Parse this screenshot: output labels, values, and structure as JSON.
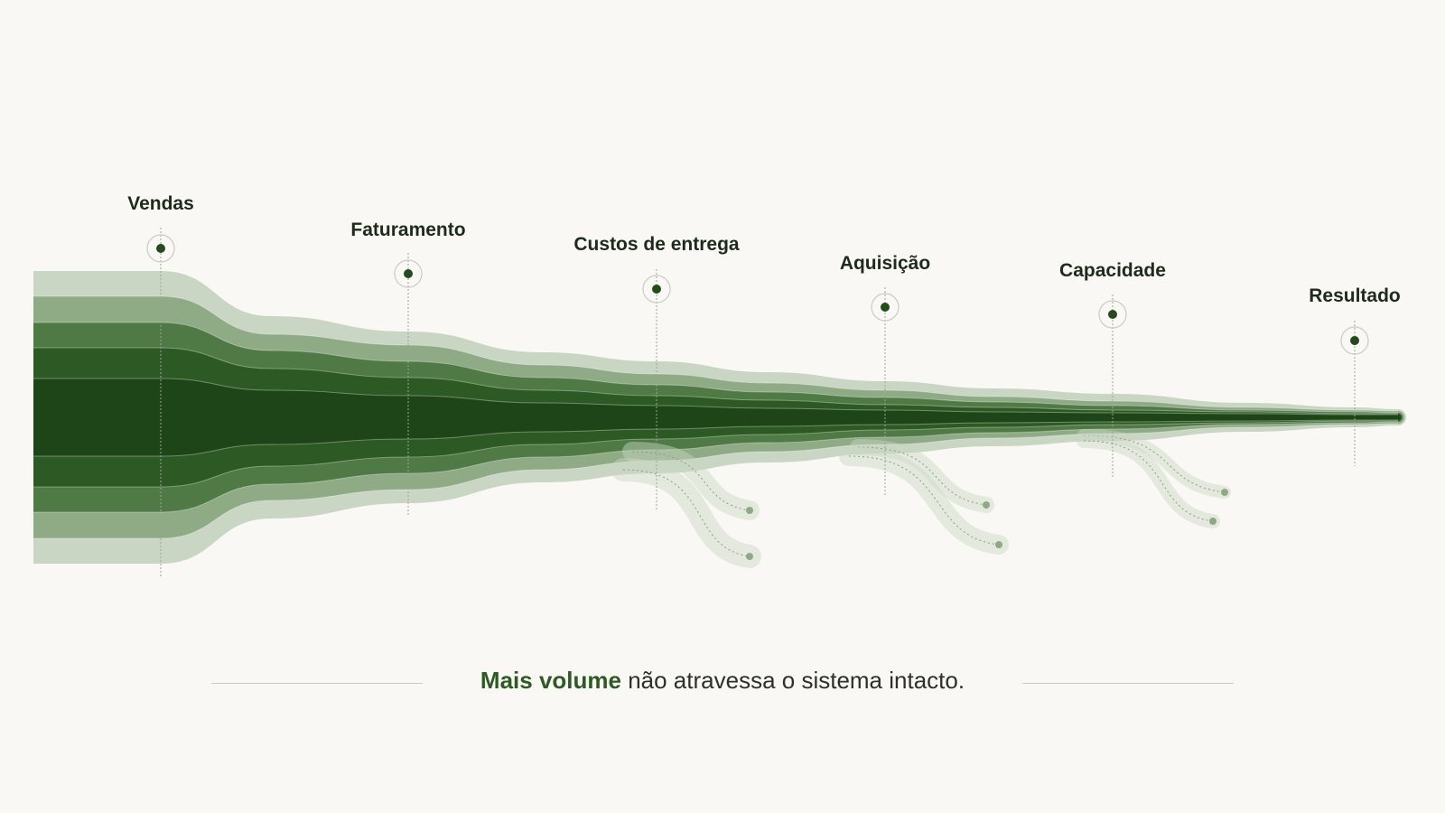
{
  "stages": [
    {
      "label": "Vendas"
    },
    {
      "label": "Faturamento"
    },
    {
      "label": "Custos de entrega"
    },
    {
      "label": "Aquisição"
    },
    {
      "label": "Capacidade"
    },
    {
      "label": "Resultado"
    }
  ],
  "tagline": {
    "emphasis": "Mais volume",
    "rest": " não atravessa o sistema intacto."
  },
  "colors": {
    "background": "#f9f8f4",
    "band_lightest": "#c9d6c3",
    "band_light": "#8eab85",
    "band_mid": "#4f7a45",
    "band_dark": "#2d5a24",
    "band_darkest": "#1d4517",
    "marker": "#244a1d",
    "accent_text": "#2f5a25"
  }
}
